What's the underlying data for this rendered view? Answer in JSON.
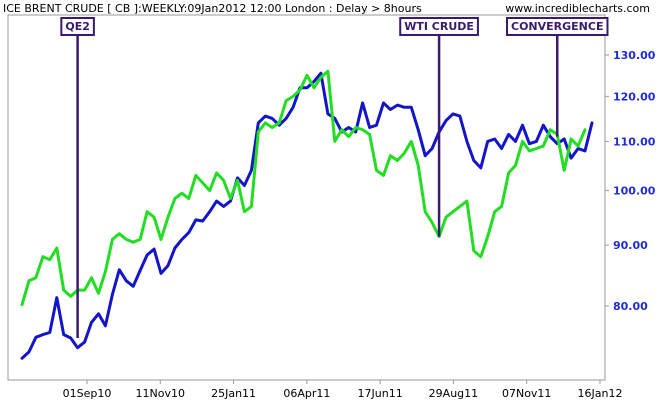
{
  "chart_data": {
    "type": "line",
    "title": "ICE BRENT CRUDE [ CB ]:WEEKLY:09Jan2012 12:00 London  : Delay > 8hours",
    "source_url": "www.incrediblecharts.com",
    "y_axis": {
      "position": "right",
      "scale": "log",
      "ticks": [
        "80.00",
        "90.00",
        "100.00",
        "110.00",
        "120.00",
        "130.00"
      ],
      "ylim": [
        70,
        134
      ]
    },
    "x_axis": {
      "ticks": [
        "01Sep10",
        "11Nov10",
        "25Jan11",
        "06Apr11",
        "17Jun11",
        "29Aug11",
        "07Nov11",
        "16Jan12"
      ]
    },
    "grid": false,
    "series": [
      {
        "color": "#1414c8",
        "values": [
          72.3,
          73.2,
          75.3,
          75.7,
          76.0,
          81.3,
          75.7,
          75.2,
          73.8,
          74.6,
          77.5,
          78.8,
          77.0,
          81.8,
          85.8,
          84.0,
          83.1,
          85.7,
          88.3,
          89.3,
          85.2,
          86.5,
          89.5,
          91.0,
          92.2,
          94.5,
          94.3,
          96.0,
          98.0,
          97.0,
          98.0,
          102.5,
          101.0,
          104.0,
          114.0,
          115.5,
          115.0,
          113.5,
          115.0,
          117.5,
          122.0,
          122.0,
          123.5,
          125.5,
          116.0,
          115.0,
          112.0,
          113.0,
          112.0,
          118.5,
          113.0,
          113.5,
          118.5,
          117.0,
          118.0,
          117.5,
          117.5,
          112.5,
          107.0,
          108.5,
          112.0,
          114.5,
          116.0,
          115.5,
          110.0,
          106.0,
          104.5,
          110.0,
          110.5,
          108.5,
          111.5,
          110.0,
          113.5,
          109.5,
          110.0,
          113.5,
          111.0,
          109.5,
          110.5,
          106.5,
          108.5,
          108.0,
          114.0
        ]
      },
      {
        "color": "#22dd22",
        "values": [
          80.2,
          84.0,
          84.5,
          88.0,
          87.5,
          89.5,
          82.5,
          81.5,
          82.5,
          82.5,
          84.5,
          82.0,
          85.5,
          91.0,
          92.0,
          91.0,
          90.5,
          91.0,
          96.0,
          95.0,
          91.0,
          95.0,
          98.5,
          99.5,
          98.5,
          103.0,
          101.5,
          100.0,
          103.5,
          102.0,
          98.5,
          102.0,
          96.0,
          97.0,
          112.0,
          114.0,
          113.0,
          114.0,
          119.0,
          120.0,
          121.5,
          125.0,
          122.0,
          124.5,
          126.0,
          110.0,
          112.5,
          111.0,
          113.0,
          112.5,
          111.5,
          104.0,
          103.0,
          107.0,
          106.0,
          107.5,
          110.0,
          105.0,
          96.0,
          94.0,
          91.5,
          95.0,
          96.0,
          97.0,
          98.0,
          89.0,
          88.0,
          91.5,
          96.0,
          97.0,
          103.5,
          105.0,
          110.0,
          108.0,
          108.5,
          109.0,
          112.5,
          111.5,
          104.0,
          110.5,
          109.0,
          112.5
        ]
      }
    ],
    "annotations": [
      {
        "text": "QE2",
        "x_index": 8,
        "y_value": 75.2
      },
      {
        "text": "WTI CRUDE",
        "x_index": 60,
        "y_value": 91.5
      },
      {
        "text": "CONVERGENCE",
        "x_index": 77,
        "y_value": 111.0
      }
    ]
  }
}
